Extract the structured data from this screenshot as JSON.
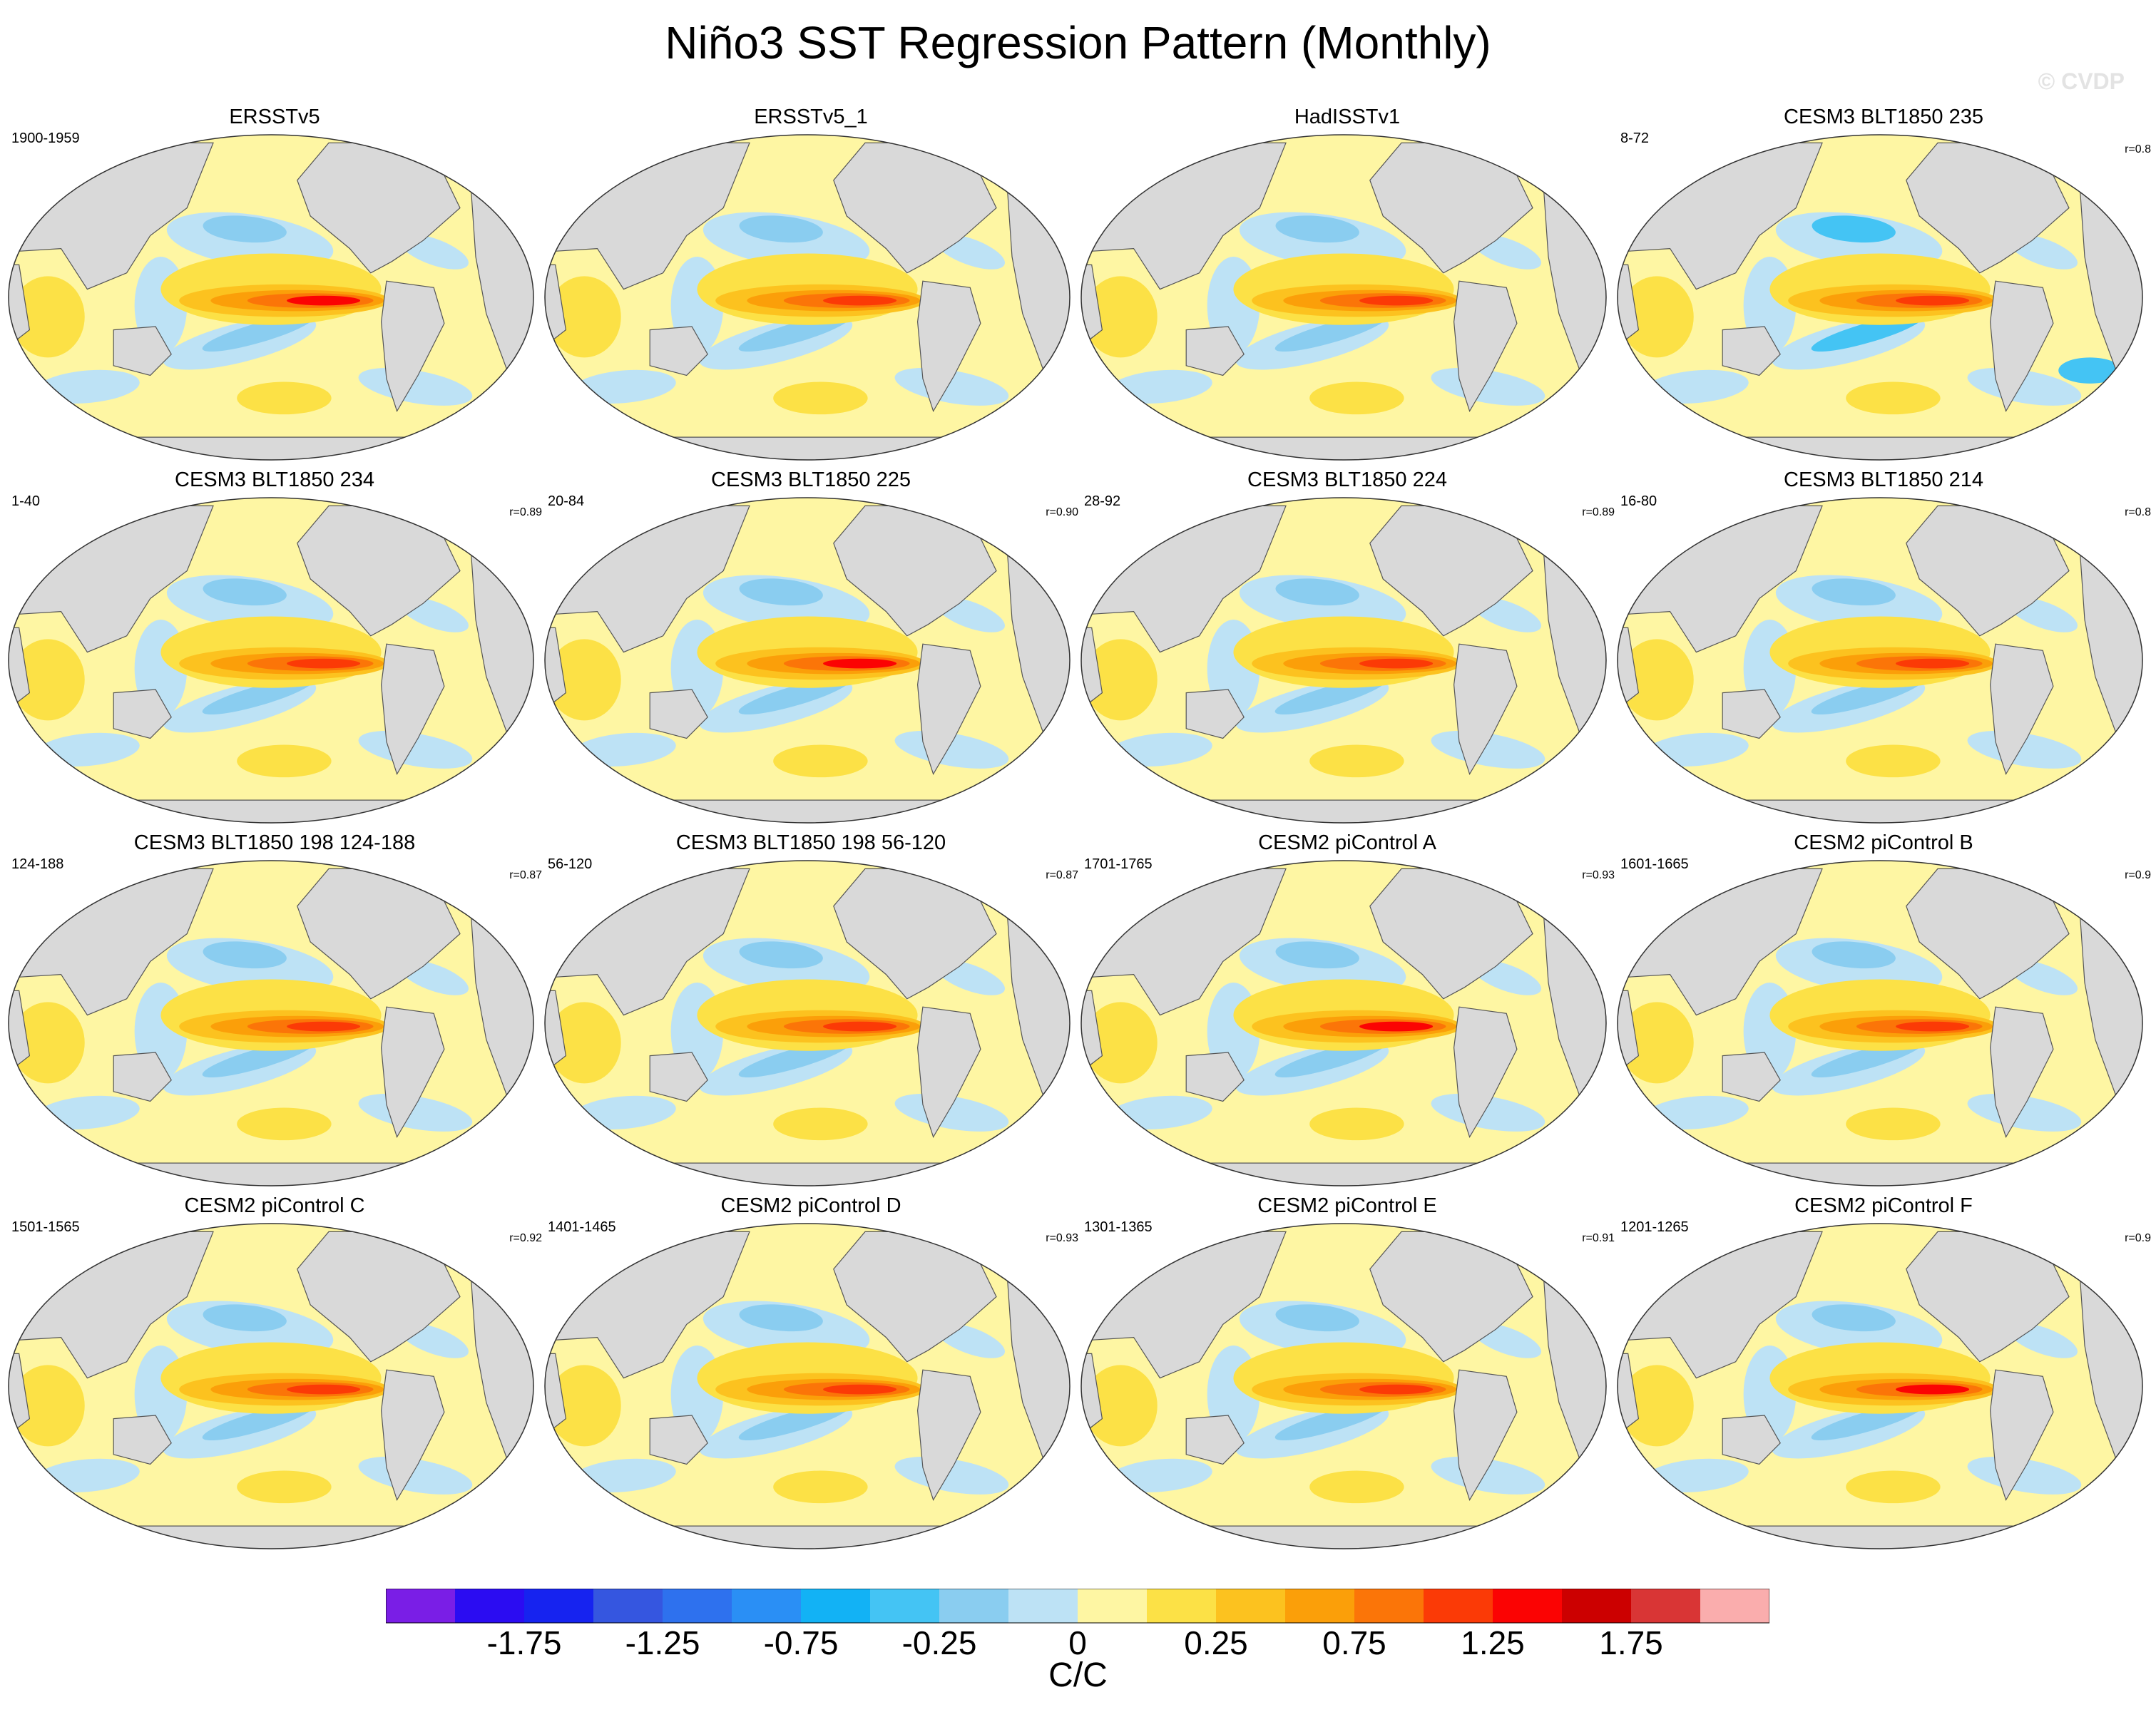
{
  "title": "Niño3 SST Regression Pattern (Monthly)",
  "copyright": "© CVDP",
  "panels": [
    {
      "title": "ERSSTv5",
      "years": "1900-1959",
      "r": "",
      "variant": 0
    },
    {
      "title": "ERSSTv5_1",
      "years": "",
      "r": "",
      "variant": 1
    },
    {
      "title": "HadISSTv1",
      "years": "",
      "r": "",
      "variant": 2
    },
    {
      "title": "CESM3 BLT1850 235",
      "years": "8-72",
      "r": "r=0.8",
      "variant": 3
    },
    {
      "title": "CESM3 BLT1850 234",
      "years": "1-40",
      "r": "r=0.89",
      "variant": 4
    },
    {
      "title": "CESM3 BLT1850 225",
      "years": "20-84",
      "r": "r=0.90",
      "variant": 5
    },
    {
      "title": "CESM3 BLT1850 224",
      "years": "28-92",
      "r": "r=0.89",
      "variant": 6
    },
    {
      "title": "CESM3 BLT1850 214",
      "years": "16-80",
      "r": "r=0.8",
      "variant": 7
    },
    {
      "title": "CESM3 BLT1850 198 124-188",
      "years": "124-188",
      "r": "r=0.87",
      "variant": 8
    },
    {
      "title": "CESM3 BLT1850 198 56-120",
      "years": "56-120",
      "r": "r=0.87",
      "variant": 9
    },
    {
      "title": "CESM2 piControl A",
      "years": "1701-1765",
      "r": "r=0.93",
      "variant": 10
    },
    {
      "title": "CESM2 piControl B",
      "years": "1601-1665",
      "r": "r=0.9",
      "variant": 11
    },
    {
      "title": "CESM2 piControl C",
      "years": "1501-1565",
      "r": "r=0.92",
      "variant": 12
    },
    {
      "title": "CESM2 piControl D",
      "years": "1401-1465",
      "r": "r=0.93",
      "variant": 13
    },
    {
      "title": "CESM2 piControl E",
      "years": "1301-1365",
      "r": "r=0.91",
      "variant": 14
    },
    {
      "title": "CESM2 piControl F",
      "years": "1201-1265",
      "r": "r=0.9",
      "variant": 15
    }
  ],
  "colorbar": {
    "colors": [
      "#7a1ee6",
      "#2b0cf2",
      "#1623f0",
      "#3556e0",
      "#2e71ee",
      "#2a8ff5",
      "#12b2f5",
      "#44c4f4",
      "#8acdf0",
      "#bde2f5",
      "#fef6a3",
      "#fce146",
      "#fcc21f",
      "#fb9f09",
      "#fb7508",
      "#fb3a06",
      "#fb0303",
      "#cc0000",
      "#d93535",
      "#faadad"
    ],
    "tick_labels": [
      "-1.75",
      "-1.25",
      "-0.75",
      "-0.25",
      "0",
      "0.25",
      "0.75",
      "1.25",
      "1.75"
    ],
    "units": "C/C"
  },
  "map_colors": {
    "land": "#d9d9d9",
    "neg_strong": "#44c4f4",
    "neg": "#8acdf0",
    "neg_weak": "#bde2f5",
    "pos_weak": "#fef6a3",
    "pos": "#fce146",
    "pos2": "#fcc21f",
    "pos3": "#fb9f09",
    "pos4": "#fb7508",
    "pos5": "#fb3a06",
    "pos6": "#fb0303"
  }
}
